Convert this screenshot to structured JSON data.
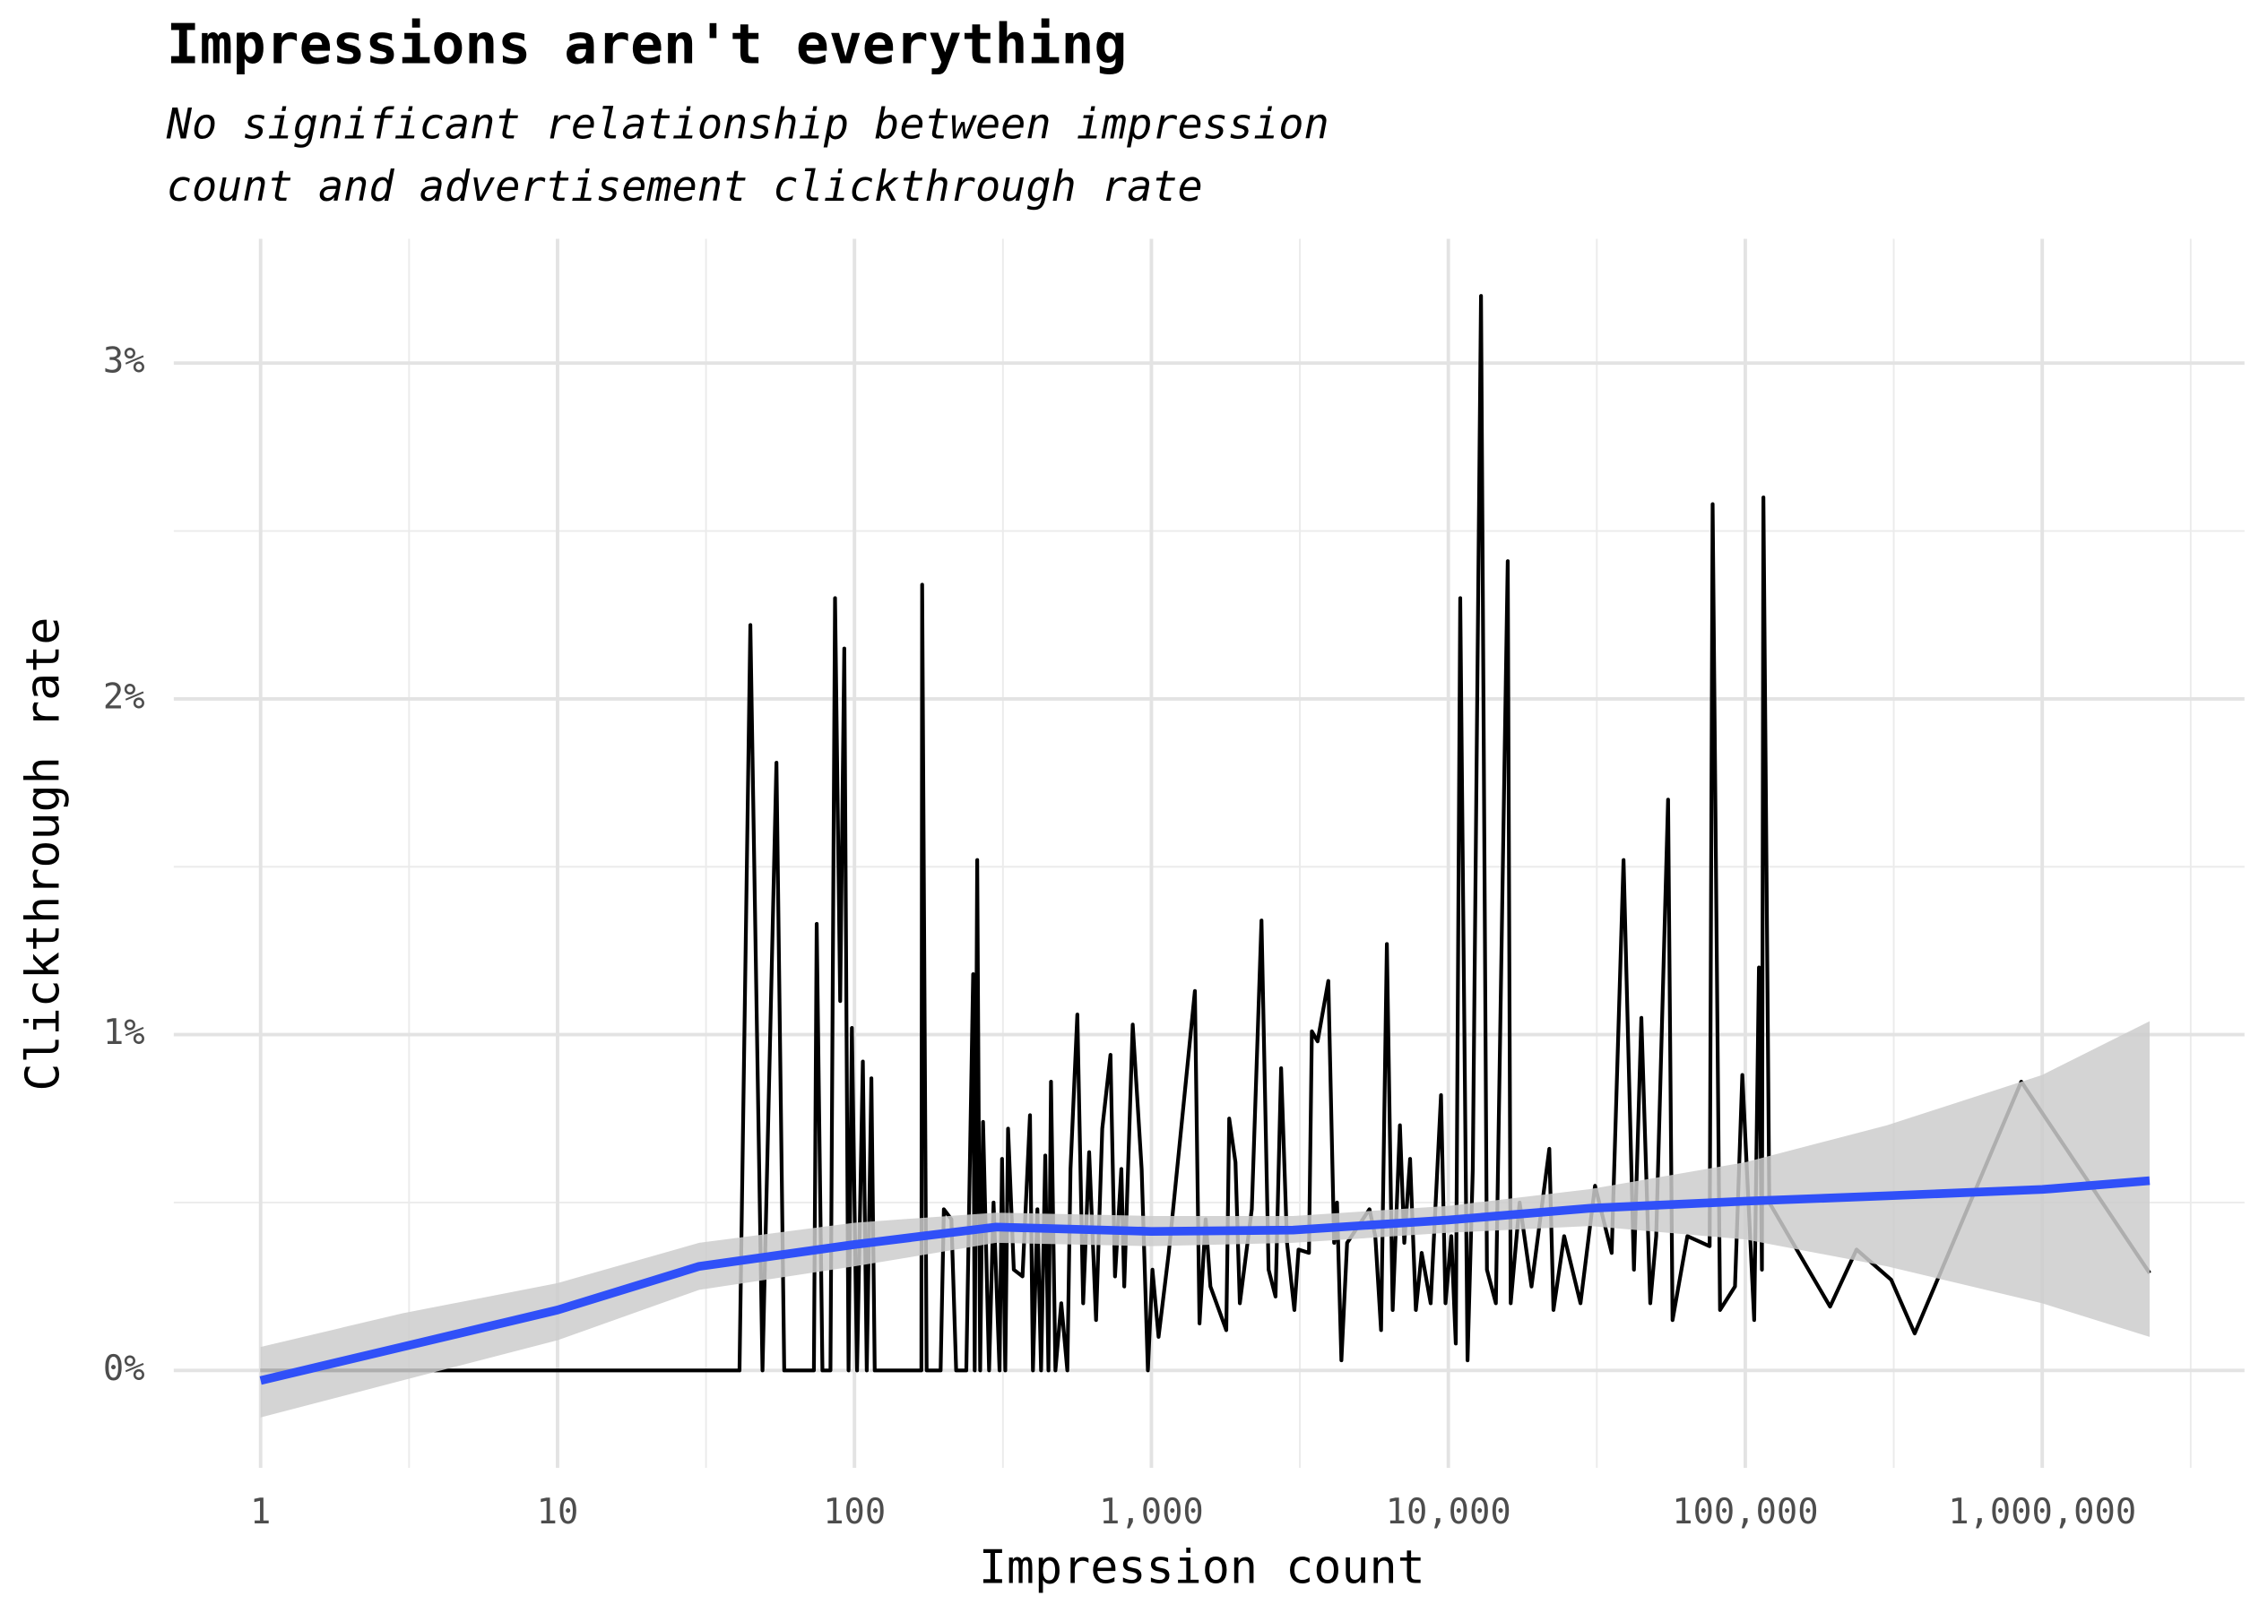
{
  "chart_data": {
    "type": "line",
    "title": "Impressions aren't everything",
    "subtitle": [
      "No significant relationship between impression",
      "count and advertisement clickthrough rate"
    ],
    "xlabel": "Impression count",
    "ylabel": "Clickthrough rate",
    "xscale": "log",
    "grid": true,
    "xlim": [
      0.51,
      4800000
    ],
    "ylim": [
      -0.29,
      3.37
    ],
    "xticks": [
      1,
      10,
      100,
      {
        "value": 1000,
        "label": "1,000"
      },
      {
        "value": 10000,
        "label": "10,000"
      },
      {
        "value": 100000,
        "label": "100,000"
      },
      {
        "value": 1000000,
        "label": "1,000,000"
      }
    ],
    "xminorticks": [
      3.162,
      31.62,
      316.2,
      3162,
      31620,
      316200,
      3162000
    ],
    "yticks": [
      {
        "value": 0,
        "label": "0%"
      },
      {
        "value": 1,
        "label": "1%"
      },
      {
        "value": 2,
        "label": "2%"
      },
      {
        "value": 3,
        "label": "3%"
      }
    ],
    "yminorticks": [
      0.5,
      1.5,
      2.5
    ],
    "series": [
      {
        "name": "Clickthrough rate",
        "color": "#000000",
        "x": [
          1,
          41,
          44.6,
          49,
          54.6,
          58,
          73,
          74.6,
          78,
          83,
          86,
          89.5,
          92.4,
          95.5,
          98,
          102,
          106.7,
          110,
          114,
          117,
          168,
          169,
          175,
          195,
          200,
          212,
          220,
          238,
          251,
          254,
          259,
          265,
          271,
          284,
          294,
          308,
          314,
          322,
          329,
          344,
          368,
          390,
          399,
          413,
          425,
          439,
          450,
          459,
          475,
          497,
          521,
          534,
          563,
          589,
          617,
          651,
          683,
          728,
          754,
          792,
          810,
          865,
          927,
          973,
          1008,
          1057,
          1144,
          1253,
          1401,
          1452,
          1523,
          1580,
          1787,
          1828,
          1919,
          1985,
          2178,
          2348,
          2481,
          2618,
          2734,
          2862,
          3030,
          3129,
          3393,
          3470,
          3628,
          3943,
          4124,
          4217,
          4363,
          4561,
          5424,
          5675,
          5935,
          6208,
          6494,
          6869,
          7105,
          7432,
          7773,
          8131,
          8718,
          9447,
          9781,
          10230,
          10593,
          10965,
          11605,
          12087,
          12882,
          13489,
          14454,
          15849,
          16218,
          17378,
          19055,
          21878,
          22594,
          24547,
          27861,
          31189,
          35481,
          38905,
          42170,
          44668,
          47863,
          50119,
          54954,
          56885,
          60954,
          63826,
          75858,
          77625,
          82224,
          92325,
          97723,
          107152,
          111173,
          113763,
          115080,
          120450,
          193000,
          237000,
          310000,
          372000,
          850000,
          2300000
        ],
        "values": [
          0,
          0,
          2.22,
          0,
          1.81,
          0,
          0,
          1.33,
          0,
          0,
          2.3,
          1.1,
          2.15,
          0,
          1.02,
          0,
          0.92,
          0,
          0.87,
          0,
          0,
          2.34,
          0,
          0,
          0.48,
          0.45,
          0,
          0,
          1.18,
          0,
          1.52,
          0,
          0.74,
          0,
          0.5,
          0,
          0.63,
          0,
          0.72,
          0.3,
          0.28,
          0.76,
          0,
          0.48,
          0,
          0.64,
          0,
          0.86,
          0,
          0.2,
          0,
          0.6,
          1.06,
          0.2,
          0.65,
          0.15,
          0.72,
          0.94,
          0.28,
          0.6,
          0.25,
          1.03,
          0.6,
          0,
          0.3,
          0.1,
          0.35,
          0.7,
          1.13,
          0.14,
          0.45,
          0.25,
          0.12,
          0.75,
          0.62,
          0.2,
          0.48,
          1.34,
          0.3,
          0.22,
          0.9,
          0.38,
          0.18,
          0.36,
          0.35,
          1.01,
          0.98,
          1.16,
          0.38,
          0.5,
          0.03,
          0.38,
          0.48,
          0.4,
          0.12,
          1.27,
          0.18,
          0.73,
          0.38,
          0.63,
          0.18,
          0.35,
          0.2,
          0.82,
          0.2,
          0.4,
          0.08,
          2.3,
          0.03,
          0.6,
          3.2,
          0.3,
          0.2,
          2.41,
          0.2,
          0.5,
          0.25,
          0.66,
          0.18,
          0.4,
          0.2,
          0.55,
          0.35,
          1.52,
          0.3,
          1.05,
          0.2,
          0.4,
          1.7,
          0.15,
          0.3,
          0.4,
          0.37,
          2.58,
          0.18,
          0.25,
          0.88,
          0.15,
          1.2,
          0.3,
          2.6,
          0.5,
          0.19,
          0.36,
          0.27,
          0.11,
          0.86,
          0.29
        ]
      }
    ],
    "smooth": {
      "color": "#3050f8",
      "band_color": "#cccccc",
      "x": [
        1,
        3,
        10,
        30,
        100,
        300,
        1000,
        3000,
        10000,
        30000,
        100000,
        300000,
        1000000,
        2300000
      ],
      "values": [
        -0.03,
        0.07,
        0.18,
        0.31,
        0.375,
        0.427,
        0.414,
        0.418,
        0.448,
        0.483,
        0.504,
        0.52,
        0.539,
        0.565
      ],
      "lower": [
        -0.14,
        -0.03,
        0.09,
        0.24,
        0.31,
        0.38,
        0.37,
        0.38,
        0.41,
        0.43,
        0.39,
        0.31,
        0.2,
        0.1
      ],
      "upper": [
        0.07,
        0.17,
        0.26,
        0.38,
        0.44,
        0.47,
        0.46,
        0.46,
        0.49,
        0.54,
        0.62,
        0.73,
        0.88,
        1.04
      ]
    }
  }
}
